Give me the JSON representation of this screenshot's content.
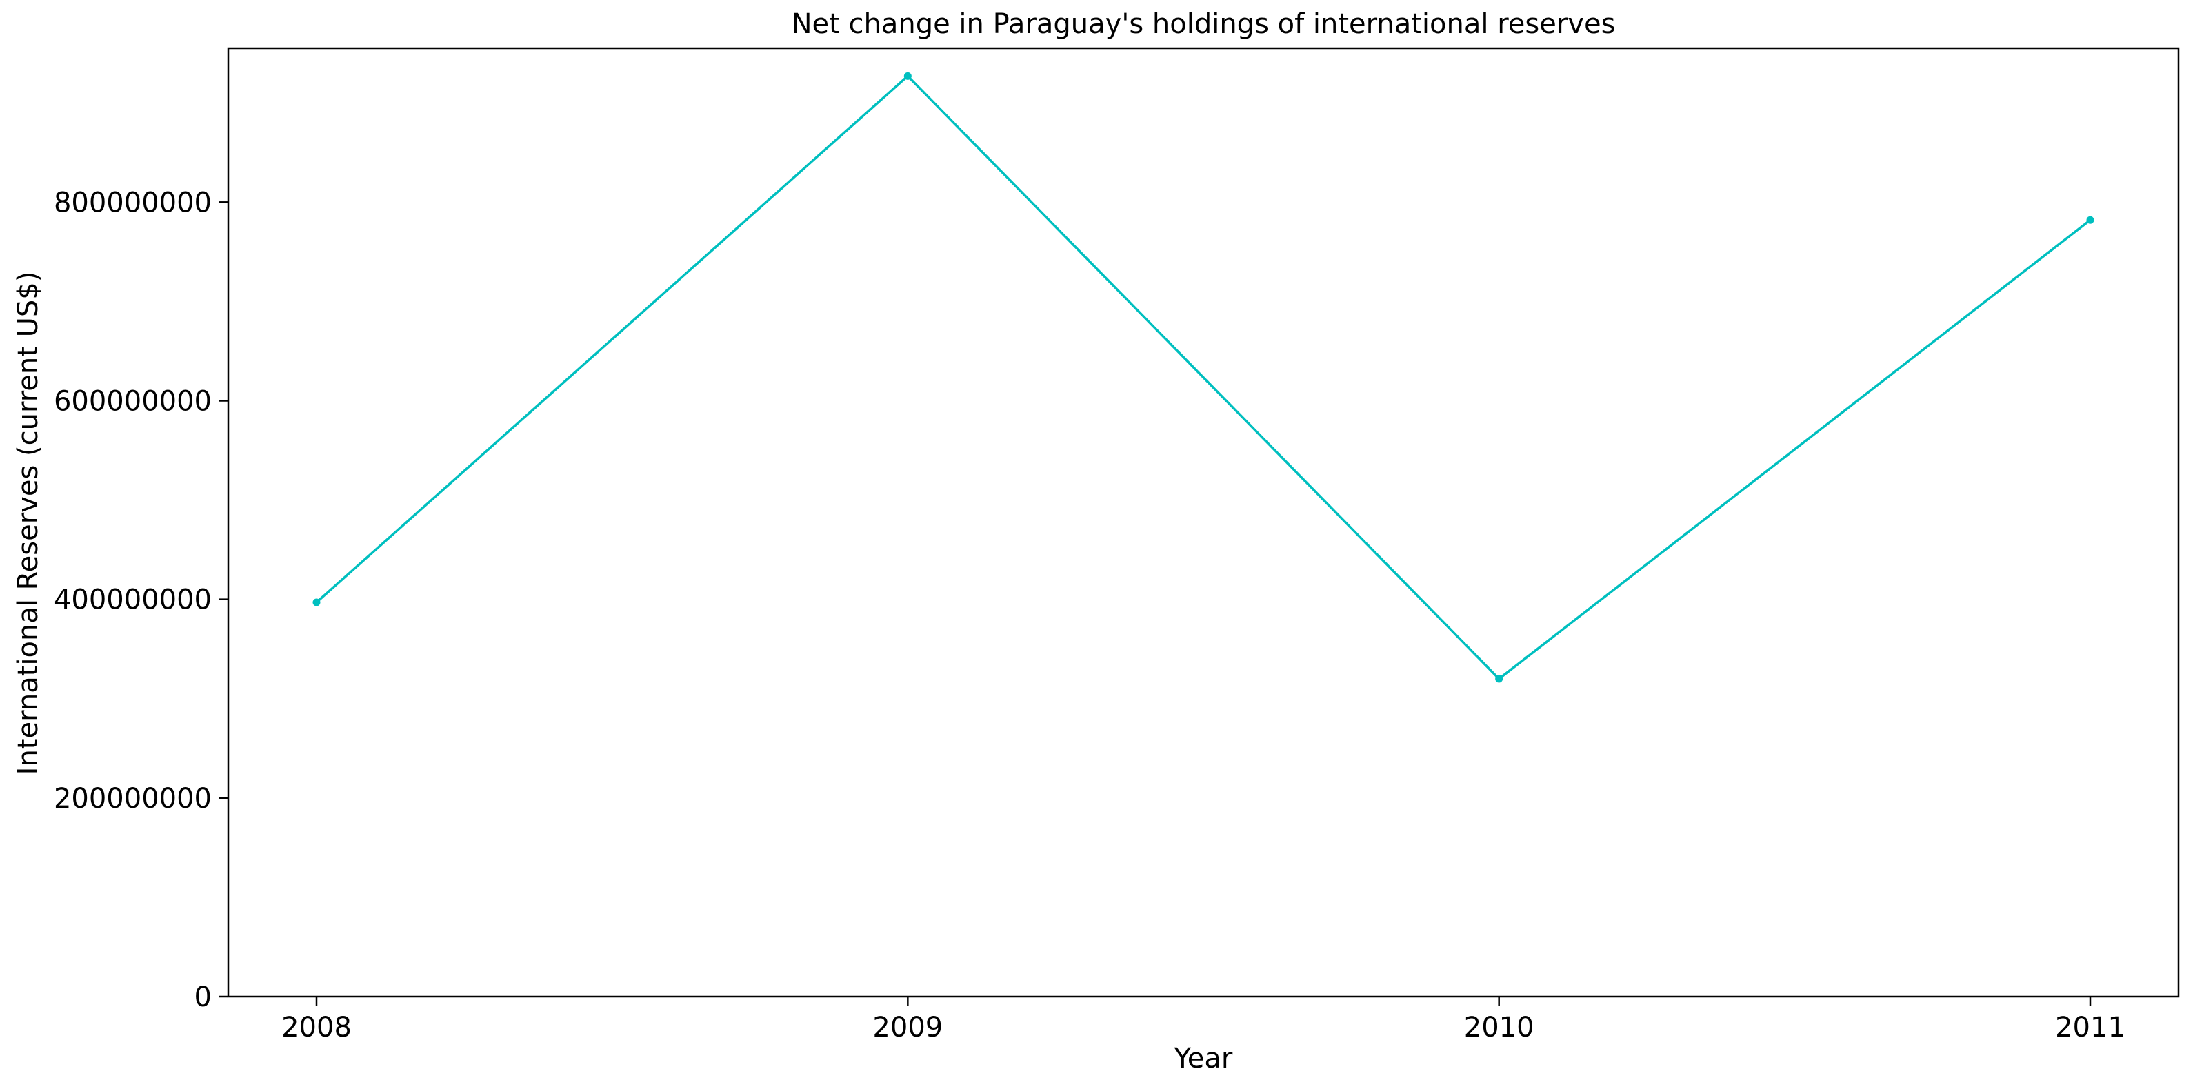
{
  "chart_data": {
    "type": "line",
    "title": "Net change in Paraguay's holdings of international reserves",
    "xlabel": "Year",
    "ylabel": "International Reserves (current US$)",
    "x": [
      "2008",
      "2009",
      "2010",
      "2011"
    ],
    "series": [
      {
        "values": [
          397000000,
          927000000,
          320000000,
          782000000
        ],
        "color": "#00bfbf",
        "marker": "circle"
      }
    ],
    "ylim": [
      0,
      955000000
    ],
    "yticks": [
      0,
      200000000,
      400000000,
      600000000,
      800000000
    ],
    "ytick_labels": [
      "0",
      "200000000",
      "400000000",
      "600000000",
      "800000000"
    ],
    "grid": false,
    "legend": false
  }
}
